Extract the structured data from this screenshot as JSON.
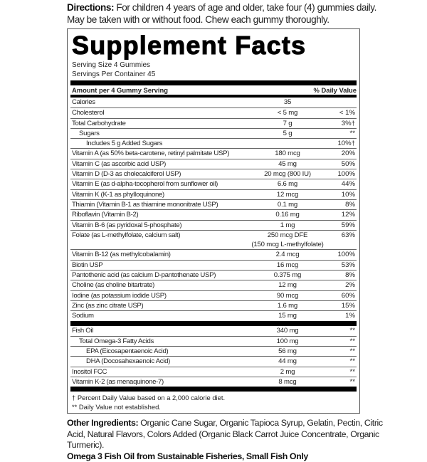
{
  "directions": {
    "label": "Directions:",
    "text": " For children 4 years of age and older, take four (4) gummies daily. May be taken with or without food. Chew each gummy thoroughly."
  },
  "facts": {
    "title": "Supplement Facts",
    "serving_size": "Serving Size 4 Gummies",
    "servings_per_container": "Servings Per Container 45",
    "header_amount": "Amount per 4 Gummy Serving",
    "header_dv": "% Daily Value",
    "rows": [
      {
        "name": "Calories",
        "amount": "35",
        "dv": ""
      },
      {
        "name": "Cholesterol",
        "amount": "< 5 mg",
        "dv": "< 1%"
      },
      {
        "name": "Total Carbohydrate",
        "amount": "7 g",
        "dv": "3%†"
      },
      {
        "name": "Sugars",
        "amount": "5 g",
        "dv": "**"
      },
      {
        "name": "Includes 5 g Added Sugars",
        "amount": "",
        "dv": "10%†"
      },
      {
        "name": "Vitamin A (as 50% beta-carotene, retinyl palmitate USP)",
        "amount": "180 mcg",
        "dv": "20%"
      },
      {
        "name": "Vitamin C (as ascorbic acid USP)",
        "amount": "45 mg",
        "dv": "50%"
      },
      {
        "name": "Vitamin D (D-3 as cholecalciferol USP)",
        "amount": "20 mcg (800 IU)",
        "dv": "100%"
      },
      {
        "name": "Vitamin E (as d-alpha-tocopherol from sunflower oil)",
        "amount": "6.6 mg",
        "dv": "44%"
      },
      {
        "name": "Vitamin K (K-1 as phylloquinone)",
        "amount": "12 mcg",
        "dv": "10%"
      },
      {
        "name": "Thiamin (Vitamin B-1 as thiamine mononitrate USP)",
        "amount": "0.1 mg",
        "dv": "8%"
      },
      {
        "name": "Riboflavin (Vitamin B-2)",
        "amount": "0.16 mg",
        "dv": "12%"
      },
      {
        "name": "Vitamin B-6 (as pyridoxal 5-phosphate)",
        "amount": "1 mg",
        "dv": "59%"
      },
      {
        "name": "Folate (as L-methylfolate, calcium salt)",
        "amount": "250 mcg DFE",
        "amount2": "(150 mcg L-methylfolate)",
        "dv": "63%"
      },
      {
        "name": "Vitamin B-12 (as methylcobalamin)",
        "amount": "2.4 mcg",
        "dv": "100%"
      },
      {
        "name": "Biotin USP",
        "amount": "16 mcg",
        "dv": "53%"
      },
      {
        "name": "Pantothenic acid (as calcium D-pantothenate USP)",
        "amount": "0.375 mg",
        "dv": "8%"
      },
      {
        "name": "Choline (as choline bitartrate)",
        "amount": "12 mg",
        "dv": "2%"
      },
      {
        "name": "Iodine (as potassium iodide USP)",
        "amount": "90 mcg",
        "dv": "60%"
      },
      {
        "name": "Zinc (as zinc citrate USP)",
        "amount": "1.6 mg",
        "dv": "15%"
      },
      {
        "name": "Sodium",
        "amount": "15 mg",
        "dv": "1%"
      }
    ],
    "rows2": [
      {
        "name": "Fish Oil",
        "amount": "340 mg",
        "dv": "**"
      },
      {
        "name": "Total Omega-3 Fatty Acids",
        "amount": "100 mg",
        "dv": "**"
      },
      {
        "name": "EPA (Eicosapentaenoic Acid)",
        "amount": "56 mg",
        "dv": "**"
      },
      {
        "name": "DHA (Docosahexaenoic Acid)",
        "amount": "44 mg",
        "dv": "**"
      },
      {
        "name": "Inositol FCC",
        "amount": "2 mg",
        "dv": "**"
      },
      {
        "name": "Vitamin K-2 (as menaquinone-7)",
        "amount": "8 mcg",
        "dv": "**"
      }
    ],
    "footnote1": "† Percent Daily Value based on a 2,000 calorie diet.",
    "footnote2": "** Daily Value not established."
  },
  "other": {
    "label": "Other Ingredients:",
    "text": " Organic Cane Sugar, Organic Tapioca Syrup, Gelatin, Pectin, Citric Acid, Natural Flavors, Colors Added (Organic Black Carrot Juice Concentrate, Organic Turmeric).",
    "note": "Omega 3 Fish Oil from Sustainable Fisheries, Small Fish Only"
  }
}
